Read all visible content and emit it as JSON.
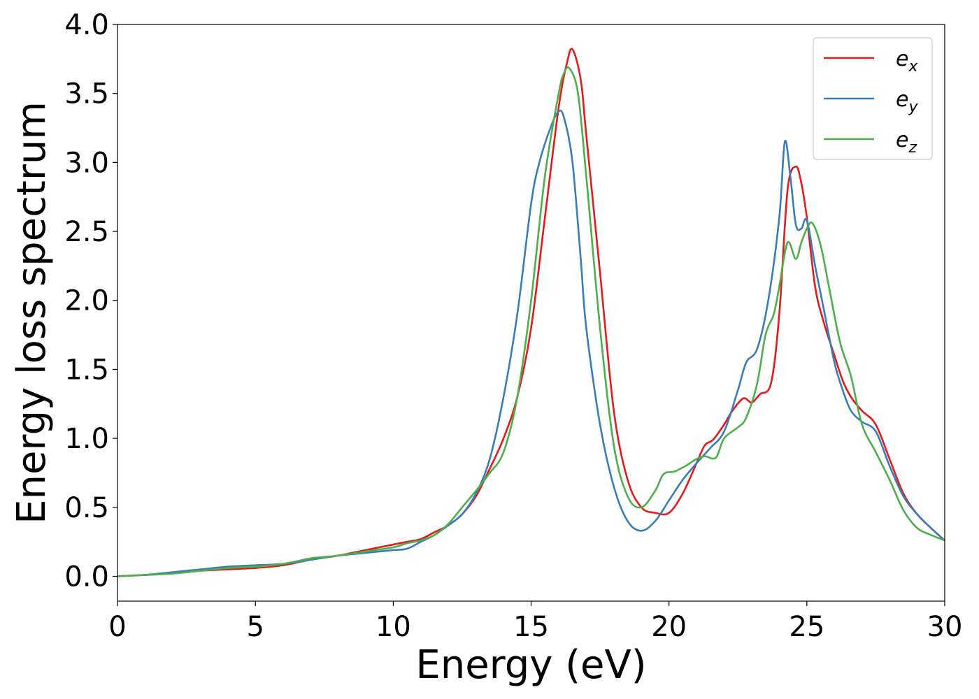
{
  "chart_data": {
    "type": "line",
    "title": "",
    "xlabel": "Energy (eV)",
    "ylabel": "Energy loss spectrum",
    "xlim": [
      0,
      30
    ],
    "ylim": [
      -0.18,
      4.0
    ],
    "xticks": [
      0,
      5,
      10,
      15,
      20,
      25,
      30
    ],
    "yticks": [
      0.0,
      0.5,
      1.0,
      1.5,
      2.0,
      2.5,
      3.0,
      3.5,
      4.0
    ],
    "xtick_labels": [
      "0",
      "5",
      "10",
      "15",
      "20",
      "25",
      "30"
    ],
    "ytick_labels": [
      "0.0",
      "0.5",
      "1.0",
      "1.5",
      "2.0",
      "2.5",
      "3.0",
      "3.5",
      "4.0"
    ],
    "grid": false,
    "legend_position": "top-right",
    "series": [
      {
        "name": "e_x",
        "legend_base": "e",
        "legend_sub": "x",
        "color": "#e41a1c",
        "x": [
          0,
          1,
          2,
          3,
          4,
          5,
          6,
          7,
          8,
          9,
          9.5,
          10,
          10.5,
          11,
          11.5,
          12,
          12.5,
          13,
          13.5,
          14,
          14.5,
          15,
          15.5,
          16,
          16.3,
          16.5,
          16.8,
          17,
          17.5,
          18,
          18.5,
          19,
          19.5,
          20,
          20.5,
          21,
          21.3,
          21.6,
          22,
          22.3,
          22.7,
          23,
          23.3,
          23.7,
          24,
          24.3,
          24.6,
          24.8,
          25,
          25.3,
          25.6,
          26,
          26.3,
          26.6,
          27,
          27.5,
          28,
          28.5,
          29,
          29.5,
          30
        ],
        "y": [
          0.0,
          0.01,
          0.02,
          0.04,
          0.05,
          0.06,
          0.08,
          0.12,
          0.15,
          0.19,
          0.21,
          0.23,
          0.25,
          0.27,
          0.32,
          0.37,
          0.45,
          0.58,
          0.78,
          1.0,
          1.3,
          1.8,
          2.6,
          3.4,
          3.72,
          3.82,
          3.6,
          3.2,
          2.2,
          1.2,
          0.7,
          0.5,
          0.46,
          0.46,
          0.6,
          0.82,
          0.95,
          0.99,
          1.1,
          1.2,
          1.29,
          1.26,
          1.32,
          1.4,
          1.9,
          2.8,
          2.97,
          2.85,
          2.6,
          2.1,
          1.85,
          1.6,
          1.42,
          1.3,
          1.2,
          1.1,
          0.85,
          0.6,
          0.45,
          0.35,
          0.26
        ]
      },
      {
        "name": "e_y",
        "legend_base": "e",
        "legend_sub": "y",
        "color": "#377eb8",
        "x": [
          0,
          1,
          2,
          3,
          4,
          5,
          6,
          7,
          8,
          9,
          9.5,
          10,
          10.5,
          11,
          11.5,
          12,
          12.5,
          13,
          13.5,
          14,
          14.5,
          15,
          15.3,
          15.7,
          16,
          16.2,
          16.5,
          16.8,
          17,
          17.5,
          18,
          18.5,
          19,
          19.5,
          20,
          20.5,
          21,
          21.5,
          22,
          22.5,
          22.8,
          23.2,
          23.6,
          24,
          24.2,
          24.4,
          24.6,
          24.8,
          25,
          25.3,
          25.6,
          26,
          26.3,
          26.6,
          27,
          27.5,
          28,
          28.5,
          29,
          29.5,
          30
        ],
        "y": [
          0.0,
          0.01,
          0.03,
          0.05,
          0.07,
          0.08,
          0.09,
          0.12,
          0.15,
          0.17,
          0.18,
          0.19,
          0.2,
          0.25,
          0.3,
          0.37,
          0.45,
          0.6,
          0.85,
          1.3,
          1.9,
          2.7,
          3.0,
          3.25,
          3.37,
          3.32,
          3.0,
          2.3,
          1.8,
          1.1,
          0.65,
          0.4,
          0.33,
          0.4,
          0.55,
          0.7,
          0.82,
          0.93,
          1.05,
          1.35,
          1.55,
          1.65,
          2.0,
          2.6,
          3.15,
          2.9,
          2.55,
          2.52,
          2.58,
          2.25,
          1.95,
          1.55,
          1.35,
          1.2,
          1.12,
          1.05,
          0.8,
          0.58,
          0.45,
          0.35,
          0.26
        ]
      },
      {
        "name": "e_z",
        "legend_base": "e",
        "legend_sub": "z",
        "color": "#4daf4a",
        "x": [
          0,
          1,
          2,
          3,
          4,
          5,
          6,
          7,
          7.5,
          8,
          9,
          10,
          10.5,
          11,
          11.5,
          12,
          12.5,
          13,
          13.5,
          14,
          14.5,
          15,
          15.5,
          16,
          16.2,
          16.4,
          16.7,
          17,
          17.5,
          18,
          18.5,
          19,
          19.5,
          19.8,
          20.2,
          20.6,
          21,
          21.3,
          21.7,
          22,
          22.5,
          22.8,
          23.2,
          23.5,
          23.8,
          24,
          24.3,
          24.6,
          24.8,
          25,
          25.2,
          25.5,
          25.8,
          26.2,
          26.6,
          27,
          27.5,
          28,
          28.5,
          29,
          29.5,
          30
        ],
        "y": [
          0.0,
          0.01,
          0.02,
          0.04,
          0.06,
          0.07,
          0.09,
          0.13,
          0.14,
          0.15,
          0.18,
          0.21,
          0.24,
          0.26,
          0.3,
          0.38,
          0.5,
          0.62,
          0.75,
          0.9,
          1.3,
          2.0,
          2.9,
          3.5,
          3.65,
          3.68,
          3.5,
          2.9,
          1.8,
          0.95,
          0.58,
          0.5,
          0.62,
          0.74,
          0.76,
          0.8,
          0.85,
          0.87,
          0.86,
          1.0,
          1.08,
          1.15,
          1.4,
          1.75,
          1.9,
          2.1,
          2.42,
          2.3,
          2.42,
          2.52,
          2.56,
          2.4,
          2.1,
          1.7,
          1.45,
          1.1,
          0.9,
          0.7,
          0.48,
          0.35,
          0.3,
          0.26
        ]
      }
    ]
  }
}
